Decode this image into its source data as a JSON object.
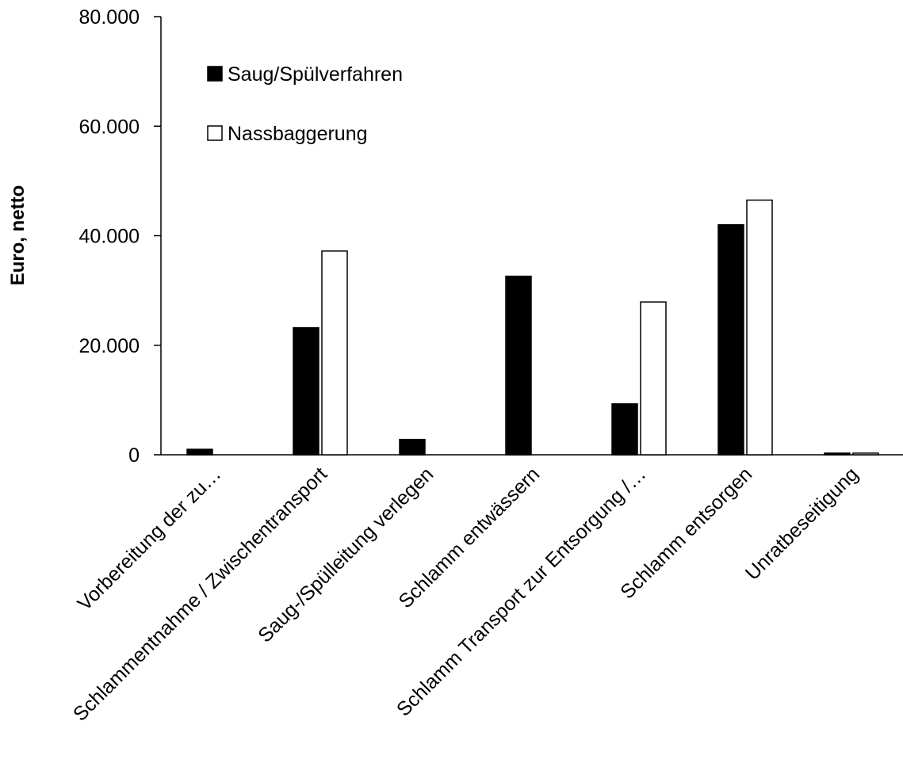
{
  "chart_data": {
    "type": "bar",
    "title": "",
    "xlabel": "",
    "ylabel": "Euro, netto",
    "ylim": [
      0,
      80000
    ],
    "yticks": [
      {
        "value": 0,
        "label": "0"
      },
      {
        "value": 20000,
        "label": "20.000"
      },
      {
        "value": 40000,
        "label": "40.000"
      },
      {
        "value": 60000,
        "label": "60.000"
      },
      {
        "value": 80000,
        "label": "80.000"
      }
    ],
    "grid": false,
    "legend_position": "top-left",
    "categories": [
      "Vorbereitung der zu…",
      "Schlammentnahme / Zwischentransport",
      "Saug-/Spülleitung verlegen",
      "Schlamm entwässern",
      "Schlamm Transport zur Entsorgung /…",
      "Schlamm entsorgen",
      "Unratbeseitigung"
    ],
    "series": [
      {
        "name": "Saug/Spülverfahren",
        "color": "#000000",
        "values": [
          1000,
          23200,
          2800,
          32600,
          9300,
          42000,
          300
        ]
      },
      {
        "name": "Nassbaggerung",
        "color": "#ffffff",
        "values": [
          0,
          37200,
          0,
          0,
          27900,
          46500,
          300
        ]
      }
    ]
  }
}
